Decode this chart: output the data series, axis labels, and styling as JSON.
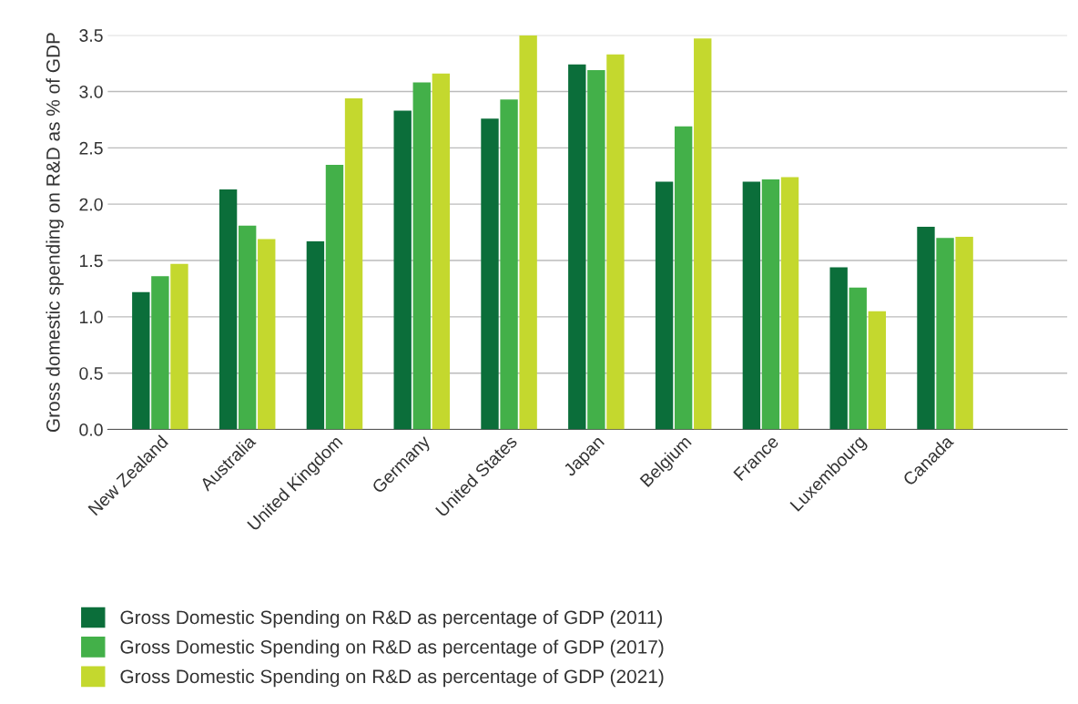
{
  "chart_data": {
    "type": "bar",
    "ylabel": "Gross domestic spending on R&D as % of GDP",
    "categories": [
      "New Zealand",
      "Australia",
      "United Kingdom",
      "Germany",
      "United States",
      "Japan",
      "Belgium",
      "France",
      "Luxembourg",
      "Canada"
    ],
    "series": [
      {
        "name": "Gross Domestic Spending on R&D as percentage of GDP (2011)",
        "color": "#0b6e3a",
        "values": [
          1.22,
          2.13,
          1.67,
          2.83,
          2.76,
          3.24,
          2.2,
          2.2,
          1.44,
          1.8
        ]
      },
      {
        "name": "Gross Domestic Spending on R&D as percentage of GDP (2017)",
        "color": "#43b049",
        "values": [
          1.36,
          1.81,
          2.35,
          3.08,
          2.93,
          3.19,
          2.69,
          2.22,
          1.26,
          1.7
        ]
      },
      {
        "name": "Gross Domestic Spending on R&D as percentage of GDP (2021)",
        "color": "#c4d82e",
        "values": [
          1.47,
          1.69,
          2.94,
          3.16,
          3.5,
          3.33,
          3.47,
          2.24,
          1.05,
          1.71
        ]
      }
    ],
    "ylim": [
      0,
      3.5
    ],
    "yticks": [
      {
        "value": 0,
        "label": "0.0"
      },
      {
        "value": 0.5,
        "label": "0.5"
      },
      {
        "value": 1,
        "label": "1.0"
      },
      {
        "value": 1.5,
        "label": "1.5"
      },
      {
        "value": 2,
        "label": "2.0"
      },
      {
        "value": 2.5,
        "label": "2.5"
      },
      {
        "value": 3,
        "label": "3.0"
      },
      {
        "value": 3.5,
        "label": "3.5"
      }
    ],
    "grid": "y",
    "legend": "bottom left"
  }
}
